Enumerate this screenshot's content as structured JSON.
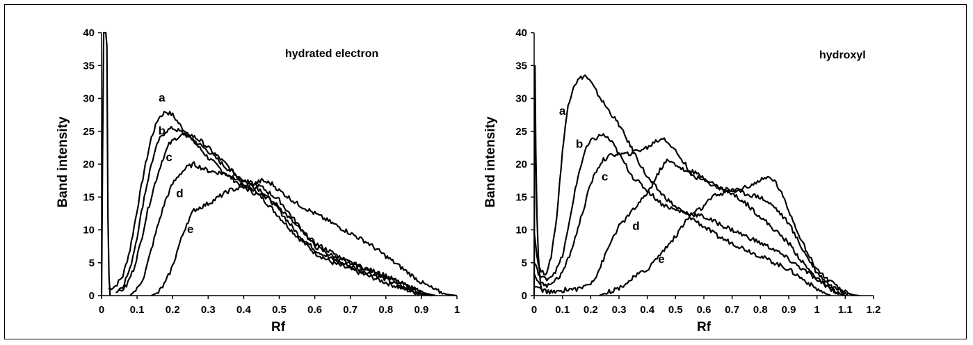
{
  "chart_data": [
    {
      "type": "line",
      "title": "",
      "annotation": "hydrated electron",
      "xlabel": "Rf",
      "ylabel": "Band intensity",
      "xlim": [
        0,
        1
      ],
      "ylim": [
        0,
        40
      ],
      "xticks": [
        "0",
        "0.1",
        "0.2",
        "0.3",
        "0.4",
        "0.5",
        "0.6",
        "0.7",
        "0.8",
        "0.9",
        "1"
      ],
      "yticks": [
        "0",
        "5",
        "10",
        "15",
        "20",
        "25",
        "30",
        "35",
        "40"
      ],
      "grid": false,
      "legend": "none",
      "spike": {
        "x": [
          0.0,
          0.003,
          0.006,
          0.009,
          0.012,
          0.015,
          0.018,
          0.021,
          0.024
        ],
        "y": [
          0,
          22,
          40,
          40,
          40,
          38,
          12,
          3,
          0
        ]
      },
      "series": [
        {
          "name": "a",
          "label_pos": [
            0.17,
            29.5
          ],
          "x": [
            0.02,
            0.04,
            0.06,
            0.08,
            0.1,
            0.12,
            0.14,
            0.16,
            0.18,
            0.2,
            0.22,
            0.25,
            0.3,
            0.35,
            0.4,
            0.45,
            0.5,
            0.55,
            0.6,
            0.65,
            0.7,
            0.75,
            0.8,
            0.85,
            0.9,
            0.93
          ],
          "y": [
            1,
            1.5,
            3,
            7,
            13,
            19,
            24,
            27,
            28,
            27.5,
            26,
            24,
            21,
            18.5,
            16.5,
            15,
            12,
            9,
            6.5,
            5,
            4,
            3,
            2,
            1,
            0.2,
            0
          ]
        },
        {
          "name": "b",
          "label_pos": [
            0.17,
            24.5
          ],
          "x": [
            0.04,
            0.06,
            0.08,
            0.1,
            0.12,
            0.14,
            0.16,
            0.18,
            0.2,
            0.22,
            0.25,
            0.3,
            0.35,
            0.4,
            0.45,
            0.5,
            0.55,
            0.6,
            0.65,
            0.7,
            0.75,
            0.8,
            0.85,
            0.9,
            0.93
          ],
          "y": [
            0.5,
            1.5,
            4,
            9,
            15,
            20,
            23.5,
            25,
            25.5,
            25,
            24,
            22,
            19.5,
            17.5,
            16,
            13,
            9.5,
            7,
            5.5,
            4.5,
            3.5,
            2.5,
            1.2,
            0.3,
            0
          ]
        },
        {
          "name": "c",
          "label_pos": [
            0.19,
            20.5
          ],
          "x": [
            0.05,
            0.07,
            0.09,
            0.11,
            0.13,
            0.15,
            0.17,
            0.19,
            0.21,
            0.23,
            0.25,
            0.28,
            0.3,
            0.35,
            0.4,
            0.45,
            0.5,
            0.55,
            0.6,
            0.65,
            0.7,
            0.75,
            0.8,
            0.85,
            0.9,
            0.94
          ],
          "y": [
            0.5,
            1.5,
            4,
            8,
            13,
            17,
            20.5,
            23,
            24,
            24.5,
            24.5,
            23.5,
            22.5,
            20,
            17,
            15.5,
            13.5,
            10.5,
            8,
            6.5,
            5,
            4,
            3,
            1.7,
            0.5,
            0
          ]
        },
        {
          "name": "d",
          "label_pos": [
            0.22,
            15
          ],
          "x": [
            0.08,
            0.1,
            0.12,
            0.14,
            0.16,
            0.18,
            0.2,
            0.22,
            0.24,
            0.26,
            0.28,
            0.3,
            0.35,
            0.4,
            0.45,
            0.5,
            0.55,
            0.6,
            0.65,
            0.7,
            0.75,
            0.8,
            0.85,
            0.9,
            0.93
          ],
          "y": [
            0,
            1,
            3,
            7,
            11,
            14.5,
            17,
            18.5,
            19.5,
            20,
            19.5,
            19,
            18.5,
            17.5,
            16.5,
            14.5,
            11,
            7.5,
            6,
            5,
            4,
            3,
            1.7,
            0.5,
            0
          ]
        },
        {
          "name": "e",
          "label_pos": [
            0.25,
            9.5
          ],
          "x": [
            0.14,
            0.16,
            0.18,
            0.2,
            0.22,
            0.24,
            0.26,
            0.28,
            0.3,
            0.33,
            0.36,
            0.4,
            0.43,
            0.45,
            0.48,
            0.5,
            0.55,
            0.6,
            0.65,
            0.7,
            0.75,
            0.8,
            0.85,
            0.9,
            0.94,
            0.97,
            1.0
          ],
          "y": [
            0,
            0.5,
            2,
            4.5,
            8,
            11,
            13,
            13.5,
            14,
            15,
            16,
            16.5,
            17,
            17.5,
            17,
            16,
            14,
            12.5,
            11,
            9.5,
            8,
            6,
            4,
            2,
            0.8,
            0.2,
            0
          ]
        }
      ]
    },
    {
      "type": "line",
      "title": "",
      "annotation": "hydroxyl",
      "xlabel": "Rf",
      "ylabel": "Band intensity",
      "xlim": [
        0,
        1.2
      ],
      "ylim": [
        0,
        40
      ],
      "xticks": [
        "0",
        "0.1",
        "0.2",
        "0.3",
        "0.4",
        "0.5",
        "0.6",
        "0.7",
        "0.8",
        "0.9",
        "1",
        "1.1",
        "1.2"
      ],
      "yticks": [
        "0",
        "5",
        "10",
        "15",
        "20",
        "25",
        "30",
        "35",
        "40"
      ],
      "grid": false,
      "legend": "none",
      "spike": {
        "x": [
          0.0,
          0.003,
          0.006,
          0.01,
          0.015,
          0.02,
          0.025,
          0.03
        ],
        "y": [
          0,
          35,
          22,
          12,
          6,
          3,
          1,
          0.5
        ]
      },
      "series": [
        {
          "name": "a",
          "label_pos": [
            0.1,
            27.5
          ],
          "x": [
            0.0,
            0.01,
            0.02,
            0.03,
            0.04,
            0.05,
            0.06,
            0.08,
            0.1,
            0.12,
            0.14,
            0.16,
            0.18,
            0.2,
            0.22,
            0.25,
            0.3,
            0.35,
            0.4,
            0.45,
            0.5,
            0.55,
            0.6,
            0.65,
            0.7,
            0.75,
            0.8,
            0.85,
            0.9,
            0.95,
            1.0,
            1.03,
            1.05
          ],
          "y": [
            10,
            6,
            4,
            3.5,
            3.5,
            4,
            6,
            12,
            22,
            29,
            32,
            33,
            33.5,
            32.5,
            31,
            29,
            26,
            22,
            18,
            15.5,
            13.5,
            12,
            10.5,
            9,
            8,
            7,
            6,
            5,
            4,
            2.5,
            1,
            0.3,
            0
          ]
        },
        {
          "name": "b",
          "label_pos": [
            0.16,
            22.5
          ],
          "x": [
            0.0,
            0.02,
            0.04,
            0.06,
            0.08,
            0.1,
            0.12,
            0.14,
            0.16,
            0.18,
            0.2,
            0.22,
            0.24,
            0.26,
            0.28,
            0.3,
            0.35,
            0.4,
            0.45,
            0.5,
            0.55,
            0.6,
            0.65,
            0.7,
            0.75,
            0.8,
            0.85,
            0.9,
            0.95,
            1.0,
            1.05,
            1.08,
            1.1
          ],
          "y": [
            5,
            3,
            2.5,
            3,
            4,
            6,
            10,
            15,
            19,
            22,
            23.5,
            24,
            24.5,
            24,
            23,
            21.5,
            18,
            16,
            14,
            13,
            12.5,
            12,
            11,
            10,
            9,
            8,
            7,
            5.5,
            4,
            2.5,
            1,
            0.3,
            0
          ]
        },
        {
          "name": "c",
          "label_pos": [
            0.25,
            17.5
          ],
          "x": [
            0.0,
            0.02,
            0.04,
            0.06,
            0.08,
            0.1,
            0.12,
            0.14,
            0.16,
            0.18,
            0.2,
            0.22,
            0.24,
            0.26,
            0.28,
            0.3,
            0.33,
            0.36,
            0.4,
            0.43,
            0.46,
            0.5,
            0.55,
            0.6,
            0.65,
            0.7,
            0.75,
            0.8,
            0.85,
            0.9,
            0.95,
            1.0,
            1.05,
            1.08,
            1.1
          ],
          "y": [
            3,
            2,
            1.5,
            2,
            2.5,
            3.5,
            5.5,
            8,
            11,
            14,
            17,
            19,
            20.5,
            21,
            21.5,
            21.5,
            21.5,
            22,
            22.5,
            23.5,
            24,
            22,
            19,
            18,
            16.5,
            15.5,
            14,
            12,
            10,
            8,
            5,
            2.5,
            1,
            0.3,
            0
          ]
        },
        {
          "name": "d",
          "label_pos": [
            0.36,
            10
          ],
          "x": [
            0.0,
            0.02,
            0.04,
            0.06,
            0.08,
            0.1,
            0.12,
            0.14,
            0.16,
            0.18,
            0.2,
            0.22,
            0.24,
            0.26,
            0.28,
            0.3,
            0.33,
            0.36,
            0.39,
            0.42,
            0.45,
            0.47,
            0.5,
            0.55,
            0.6,
            0.65,
            0.7,
            0.75,
            0.8,
            0.85,
            0.9,
            0.95,
            1.0,
            1.05,
            1.1,
            1.13
          ],
          "y": [
            1.5,
            1,
            0.7,
            0.5,
            0.5,
            0.8,
            1,
            1,
            1,
            1.5,
            2,
            3,
            5,
            7,
            9,
            10.5,
            12,
            13.5,
            15,
            17,
            19.5,
            20.5,
            20,
            18.5,
            17.5,
            16.5,
            16,
            15.5,
            15,
            13.5,
            11,
            7,
            3.5,
            1.5,
            0.5,
            0
          ]
        },
        {
          "name": "e",
          "label_pos": [
            0.45,
            5
          ],
          "x": [
            0.23,
            0.26,
            0.3,
            0.33,
            0.36,
            0.4,
            0.43,
            0.46,
            0.5,
            0.53,
            0.56,
            0.6,
            0.63,
            0.66,
            0.7,
            0.75,
            0.8,
            0.83,
            0.85,
            0.87,
            0.9,
            0.93,
            0.96,
            1.0,
            1.05,
            1.08,
            1.1,
            1.13,
            1.15
          ],
          "y": [
            0,
            0.5,
            1.2,
            2,
            3,
            4,
            5.5,
            7,
            9,
            11,
            12.5,
            13.5,
            15,
            15.5,
            16,
            16.5,
            17.5,
            18,
            17.5,
            16,
            13,
            10,
            7,
            4,
            2,
            1,
            0.5,
            0.1,
            0
          ]
        }
      ]
    }
  ]
}
